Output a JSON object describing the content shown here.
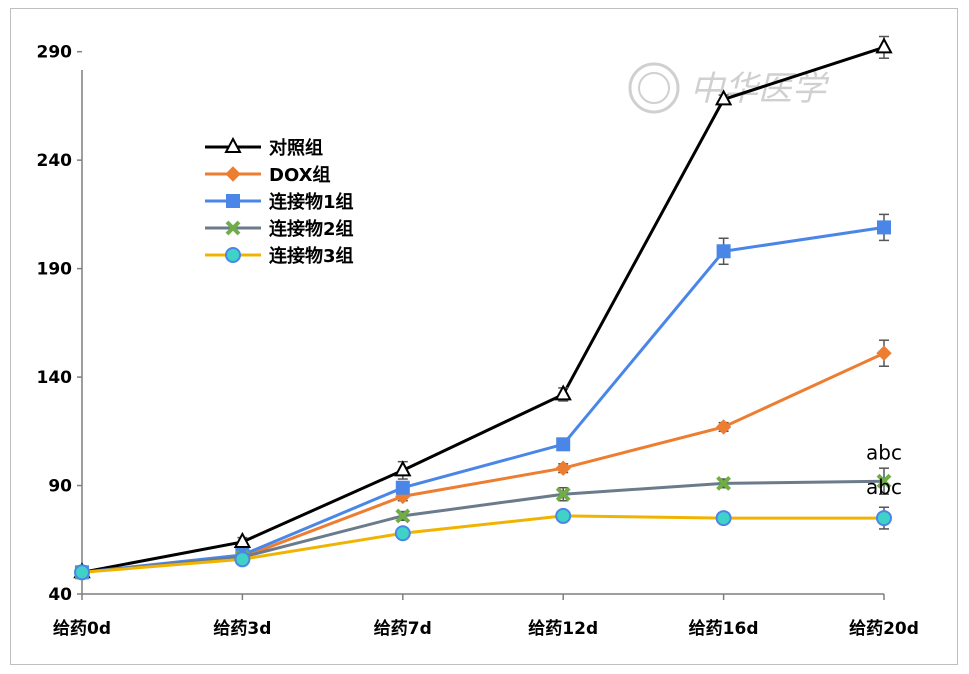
{
  "chart_data": {
    "type": "line",
    "categories": [
      "给药0d",
      "给药3d",
      "给药7d",
      "给药12d",
      "给药16d",
      "给药20d"
    ],
    "ylim": [
      40,
      300
    ],
    "yticks": [
      40,
      90,
      140,
      190,
      240,
      290
    ],
    "grid": false,
    "legend_position": "top-left",
    "series": [
      {
        "name": "对照组",
        "color": "#000000",
        "marker": "triangle-open",
        "values": [
          50,
          64,
          97,
          132,
          268,
          292
        ],
        "errors": [
          0,
          2,
          4,
          3,
          2,
          5
        ]
      },
      {
        "name": "DOX组",
        "color": "#ed7d31",
        "marker": "diamond",
        "values": [
          50,
          57,
          85,
          98,
          117,
          151
        ],
        "errors": [
          0,
          1,
          2,
          2,
          2,
          6
        ]
      },
      {
        "name": "连接物1组",
        "color": "#4a86e8",
        "marker": "square",
        "values": [
          50,
          58,
          89,
          109,
          198,
          209
        ],
        "errors": [
          0,
          1,
          2,
          2,
          6,
          6
        ]
      },
      {
        "name": "连接物2组",
        "color": "#6b7b8c",
        "marker": "x-green",
        "values": [
          50,
          57,
          76,
          86,
          91,
          92
        ],
        "errors": [
          0,
          1,
          2,
          3,
          2,
          6
        ]
      },
      {
        "name": "连接物3组",
        "color": "#f0b400",
        "marker": "circle-cyan",
        "values": [
          50,
          56,
          68,
          76,
          75,
          75
        ],
        "errors": [
          0,
          1,
          2,
          2,
          2,
          5
        ]
      }
    ],
    "annotations": [
      {
        "text": "abc",
        "category": "给药20d",
        "y": 102
      },
      {
        "text": "abc",
        "category": "给药20d",
        "y": 86
      }
    ]
  },
  "watermark": {
    "text": "中华医学"
  }
}
